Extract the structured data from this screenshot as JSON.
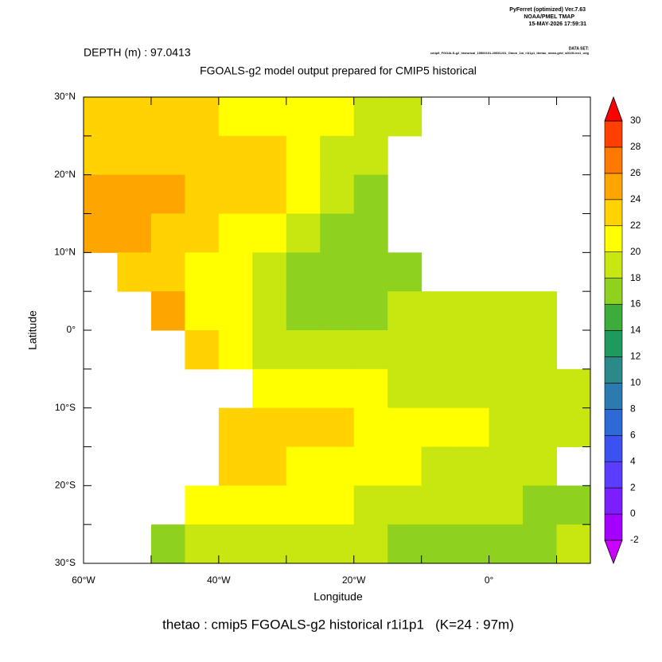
{
  "header": {
    "software": "PyFerret (optimized) Ver.7.63",
    "lab": "NOAA/PMEL TMAP",
    "timestamp": "15-MAY-2026 17:59:31",
    "dataset_label": "DATA SET:",
    "dataset": "cmip5_FGOALS-g2_historical_19500101-20051231_Omon_1m_r1i1p1_thetao_mean.grid_s0025-lev1_orig"
  },
  "chart_data": {
    "type": "heatmap",
    "depth_label": "DEPTH (m) : 97.0413",
    "title": "FGOALS-g2 model output prepared for CMIP5 historical",
    "caption": "thetao : cmip5 FGOALS-g2 historical r1i1p1   (K=24 : 97m)",
    "xlabel": "Longitude",
    "ylabel": "Latitude",
    "xlim": [
      -60,
      15
    ],
    "ylim": [
      -30,
      30
    ],
    "xticks": [
      {
        "value": -60,
        "label": "60°W"
      },
      {
        "value": -40,
        "label": "40°W"
      },
      {
        "value": -20,
        "label": "20°W"
      },
      {
        "value": 0,
        "label": "0°"
      }
    ],
    "xminorticks": [
      -50,
      -30,
      -10,
      10
    ],
    "yticks": [
      {
        "value": 30,
        "label": "30°N"
      },
      {
        "value": 20,
        "label": "20°N"
      },
      {
        "value": 10,
        "label": "10°N"
      },
      {
        "value": 0,
        "label": "0°"
      },
      {
        "value": -10,
        "label": "10°S"
      },
      {
        "value": -20,
        "label": "20°S"
      },
      {
        "value": -30,
        "label": "30°S"
      }
    ],
    "yminorticks": [
      25,
      15,
      5,
      -5,
      -15,
      -25
    ],
    "x": [
      -57.5,
      -52.5,
      -47.5,
      -42.5,
      -37.5,
      -32.5,
      -27.5,
      -22.5,
      -17.5,
      -12.5,
      -7.5,
      -2.5,
      2.5,
      7.5,
      12.5
    ],
    "y": [
      27.5,
      22.5,
      17.5,
      12.5,
      7.5,
      2.5,
      -2.5,
      -7.5,
      -12.5,
      -17.5,
      -22.5,
      -27.5
    ],
    "values": [
      [
        22.5,
        22.5,
        22,
        22,
        21.5,
        21,
        20.5,
        20,
        19.5,
        19,
        null,
        null,
        null,
        null,
        null
      ],
      [
        23.5,
        23.5,
        23.5,
        23,
        22.5,
        22,
        21,
        19.5,
        18,
        null,
        null,
        null,
        null,
        null,
        null
      ],
      [
        25,
        25,
        24,
        23.5,
        23,
        22,
        20.5,
        19,
        17.5,
        null,
        null,
        null,
        null,
        null,
        null
      ],
      [
        24.5,
        24,
        23.5,
        22.5,
        21.5,
        20,
        19,
        17.5,
        17.5,
        null,
        null,
        null,
        null,
        null,
        null
      ],
      [
        null,
        23,
        22,
        21,
        20,
        18.5,
        17.5,
        17,
        17,
        17.5,
        null,
        null,
        null,
        null,
        null
      ],
      [
        null,
        null,
        24,
        21.5,
        20,
        19,
        17.5,
        17,
        17.5,
        18,
        18.5,
        18.5,
        18.5,
        18.5,
        null
      ],
      [
        null,
        null,
        null,
        23,
        20.5,
        19,
        18,
        18,
        18,
        18,
        18.5,
        18.5,
        18.5,
        18.5,
        null
      ],
      [
        null,
        null,
        null,
        null,
        null,
        21,
        21,
        20.5,
        20,
        19.5,
        19,
        18.5,
        18.5,
        18.5,
        18.5
      ],
      [
        null,
        null,
        null,
        null,
        22,
        22.5,
        22,
        22,
        21.5,
        21,
        20.5,
        20,
        19.5,
        19,
        18.5
      ],
      [
        null,
        null,
        null,
        null,
        22.5,
        22,
        21.5,
        21,
        20.5,
        20,
        19.5,
        19,
        18.5,
        18,
        null
      ],
      [
        null,
        null,
        null,
        21.5,
        21.5,
        21,
        20.5,
        20,
        19.5,
        19,
        19,
        18.5,
        18,
        17.5,
        17.5
      ],
      [
        null,
        null,
        17.5,
        19,
        19.5,
        19.5,
        19,
        18.5,
        18,
        17,
        16.5,
        16.5,
        17,
        17.5,
        18
      ]
    ],
    "colorbar": {
      "levels": [
        -2,
        0,
        2,
        4,
        6,
        8,
        10,
        12,
        14,
        16,
        18,
        20,
        22,
        24,
        26,
        28,
        30
      ],
      "colors": [
        "#a300ff",
        "#7b1fff",
        "#5a3dff",
        "#3b52f0",
        "#2e6ad6",
        "#2b7bb0",
        "#2a8a8a",
        "#1f9a5f",
        "#3cac3c",
        "#8fd11f",
        "#c8e60f",
        "#ffff00",
        "#ffd200",
        "#ffa500",
        "#ff7800",
        "#ff4000"
      ],
      "under_color": "#cc00ff",
      "over_color": "#ff0000"
    }
  }
}
